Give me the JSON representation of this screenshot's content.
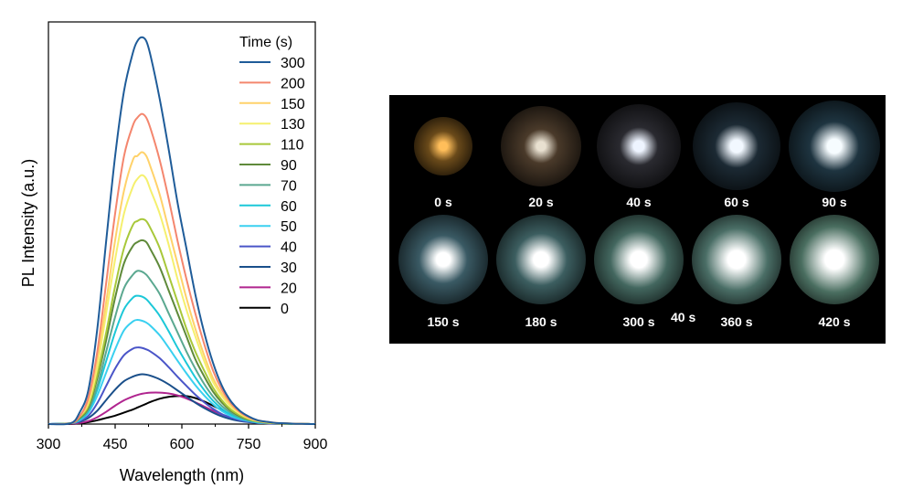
{
  "chart_data": [
    {
      "type": "line",
      "xlabel": "Wavelength (nm)",
      "ylabel": "PL Intensity (a.u.)",
      "xlim": [
        300,
        900
      ],
      "ylim": [
        0,
        1.05
      ],
      "xticks": [
        "300",
        "450",
        "600",
        "750",
        "900"
      ],
      "legend_title": "Time (s)",
      "legend_position": "top-right",
      "x": [
        300,
        350,
        370,
        390,
        410,
        430,
        450,
        470,
        490,
        500,
        510,
        520,
        530,
        550,
        570,
        590,
        610,
        630,
        650,
        670,
        690,
        710,
        730,
        750,
        770,
        790,
        810,
        830,
        850,
        870,
        890,
        900
      ],
      "series": [
        {
          "name": "300",
          "color": "#1f5c99",
          "values": [
            0,
            0.002,
            0.03,
            0.09,
            0.25,
            0.48,
            0.7,
            0.87,
            0.97,
            1.0,
            1.01,
            1.0,
            0.96,
            0.85,
            0.72,
            0.58,
            0.46,
            0.34,
            0.24,
            0.16,
            0.1,
            0.06,
            0.035,
            0.02,
            0.01,
            0.006,
            0.003,
            0.002,
            0.001,
            0.0005,
            0,
            0
          ]
        },
        {
          "name": "200",
          "color": "#f4866e",
          "values": [
            0,
            0.002,
            0.02,
            0.07,
            0.19,
            0.37,
            0.55,
            0.7,
            0.78,
            0.8,
            0.81,
            0.8,
            0.77,
            0.69,
            0.59,
            0.48,
            0.38,
            0.29,
            0.21,
            0.14,
            0.09,
            0.055,
            0.032,
            0.018,
            0.01,
            0.006,
            0.003,
            0.002,
            0.001,
            0.0005,
            0,
            0
          ]
        },
        {
          "name": "150",
          "color": "#ffd26a",
          "values": [
            0,
            0.002,
            0.02,
            0.06,
            0.17,
            0.32,
            0.48,
            0.61,
            0.69,
            0.7,
            0.71,
            0.7,
            0.67,
            0.6,
            0.51,
            0.42,
            0.33,
            0.25,
            0.18,
            0.12,
            0.08,
            0.05,
            0.03,
            0.016,
            0.009,
            0.005,
            0.003,
            0.002,
            0.001,
            0.0005,
            0,
            0
          ]
        },
        {
          "name": "130",
          "color": "#f5f06e",
          "values": [
            0,
            0.002,
            0.02,
            0.055,
            0.15,
            0.29,
            0.43,
            0.55,
            0.62,
            0.64,
            0.65,
            0.64,
            0.61,
            0.55,
            0.47,
            0.38,
            0.3,
            0.23,
            0.165,
            0.11,
            0.073,
            0.045,
            0.027,
            0.015,
            0.008,
            0.005,
            0.003,
            0.002,
            0.001,
            0.0005,
            0,
            0
          ]
        },
        {
          "name": "110",
          "color": "#a8c83a",
          "values": [
            0,
            0.002,
            0.018,
            0.048,
            0.13,
            0.24,
            0.36,
            0.46,
            0.52,
            0.53,
            0.535,
            0.53,
            0.51,
            0.46,
            0.39,
            0.32,
            0.25,
            0.19,
            0.14,
            0.095,
            0.062,
            0.038,
            0.023,
            0.013,
            0.007,
            0.004,
            0.002,
            0.001,
            0.001,
            0.0005,
            0,
            0
          ]
        },
        {
          "name": "90",
          "color": "#5f8a3a",
          "values": [
            0,
            0.002,
            0.016,
            0.044,
            0.12,
            0.22,
            0.33,
            0.42,
            0.465,
            0.475,
            0.48,
            0.475,
            0.455,
            0.41,
            0.35,
            0.29,
            0.23,
            0.17,
            0.125,
            0.085,
            0.056,
            0.035,
            0.021,
            0.012,
            0.007,
            0.004,
            0.002,
            0.001,
            0.001,
            0.0005,
            0,
            0
          ]
        },
        {
          "name": "70",
          "color": "#5ba890",
          "values": [
            0,
            0.002,
            0.014,
            0.038,
            0.1,
            0.19,
            0.28,
            0.355,
            0.39,
            0.4,
            0.398,
            0.39,
            0.375,
            0.34,
            0.29,
            0.24,
            0.19,
            0.145,
            0.105,
            0.072,
            0.047,
            0.03,
            0.018,
            0.01,
            0.006,
            0.003,
            0.002,
            0.001,
            0.0005,
            0.0003,
            0,
            0
          ]
        },
        {
          "name": "60",
          "color": "#1cc8d8",
          "values": [
            0,
            0.002,
            0.012,
            0.034,
            0.09,
            0.165,
            0.24,
            0.3,
            0.33,
            0.335,
            0.333,
            0.326,
            0.313,
            0.283,
            0.243,
            0.2,
            0.16,
            0.122,
            0.089,
            0.061,
            0.04,
            0.025,
            0.015,
            0.009,
            0.005,
            0.003,
            0.002,
            0.001,
            0.0005,
            0.0003,
            0,
            0
          ]
        },
        {
          "name": "50",
          "color": "#3ad0f0",
          "values": [
            0,
            0.002,
            0.01,
            0.03,
            0.075,
            0.135,
            0.195,
            0.245,
            0.268,
            0.272,
            0.27,
            0.265,
            0.256,
            0.232,
            0.2,
            0.166,
            0.133,
            0.102,
            0.075,
            0.052,
            0.034,
            0.021,
            0.013,
            0.008,
            0.004,
            0.003,
            0.002,
            0.001,
            0.0005,
            0.0003,
            0,
            0
          ]
        },
        {
          "name": "40",
          "color": "#4a55c8",
          "values": [
            0,
            0.002,
            0.008,
            0.022,
            0.055,
            0.1,
            0.145,
            0.18,
            0.197,
            0.2,
            0.199,
            0.195,
            0.189,
            0.172,
            0.149,
            0.124,
            0.1,
            0.077,
            0.057,
            0.04,
            0.026,
            0.017,
            0.01,
            0.006,
            0.003,
            0.002,
            0.001,
            0.001,
            0.0005,
            0.0003,
            0,
            0
          ]
        },
        {
          "name": "30",
          "color": "#1a4f8a",
          "values": [
            0,
            0.002,
            0.006,
            0.016,
            0.035,
            0.063,
            0.09,
            0.112,
            0.124,
            0.128,
            0.13,
            0.129,
            0.126,
            0.117,
            0.104,
            0.088,
            0.072,
            0.056,
            0.042,
            0.03,
            0.02,
            0.013,
            0.008,
            0.005,
            0.003,
            0.002,
            0.001,
            0.001,
            0.0005,
            0.0003,
            0,
            0
          ]
        },
        {
          "name": "20",
          "color": "#b0258f",
          "values": [
            0,
            0.001,
            0.003,
            0.008,
            0.018,
            0.032,
            0.048,
            0.062,
            0.072,
            0.076,
            0.079,
            0.081,
            0.082,
            0.082,
            0.08,
            0.075,
            0.067,
            0.057,
            0.046,
            0.035,
            0.025,
            0.017,
            0.011,
            0.007,
            0.004,
            0.002,
            0.001,
            0.001,
            0.0005,
            0.0003,
            0,
            0
          ]
        },
        {
          "name": "0",
          "color": "#000000",
          "values": [
            0,
            0,
            0.002,
            0.005,
            0.01,
            0.016,
            0.022,
            0.03,
            0.038,
            0.043,
            0.048,
            0.053,
            0.058,
            0.066,
            0.071,
            0.073,
            0.073,
            0.068,
            0.059,
            0.048,
            0.036,
            0.025,
            0.016,
            0.01,
            0.006,
            0.003,
            0.002,
            0.001,
            0.0005,
            0.0003,
            0,
            0
          ]
        }
      ]
    }
  ],
  "photo_panel": {
    "background": "#000000",
    "spots": [
      {
        "label": "0 s",
        "color": "#ffbe5a",
        "glow": "#6a4a1a"
      },
      {
        "label": "20 s",
        "color": "#e8e0d0",
        "glow": "#4a3a2a"
      },
      {
        "label": "40 s",
        "color": "#eef4ff",
        "glow": "#2a2a30"
      },
      {
        "label": "60 s",
        "color": "#f2f8ff",
        "glow": "#1c2a34"
      },
      {
        "label": "90 s",
        "color": "#f6fcff",
        "glow": "#1e3440"
      },
      {
        "label": "150 s",
        "color": "#ffffff",
        "glow": "#3a5a64"
      },
      {
        "label": "180 s",
        "color": "#ffffff",
        "glow": "#3c5e60"
      },
      {
        "label": "300 s",
        "color": "#ffffff",
        "glow": "#43675f"
      },
      {
        "label": "360 s",
        "color": "#ffffff",
        "glow": "#4a6e66"
      },
      {
        "label": "420 s",
        "color": "#ffffff",
        "glow": "#4a6e60"
      }
    ],
    "extra_label": "40 s"
  }
}
